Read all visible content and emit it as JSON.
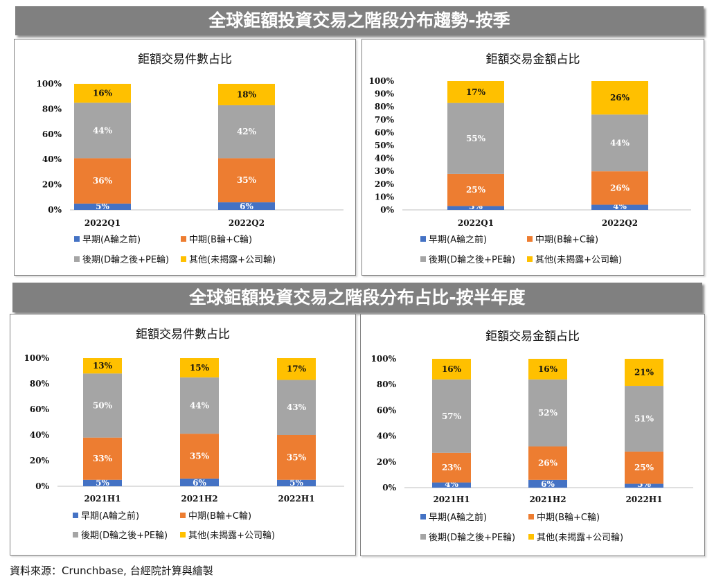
{
  "banners": {
    "quarterly": "全球鉅額投資交易之階段分布趨勢-按季",
    "half_year": "全球鉅額投資交易之階段分布占比-按半年度"
  },
  "source": "資料來源：Crunchbase, 台經院計算與繪製",
  "colors": {
    "early": "#4472C4",
    "mid": "#ED7D31",
    "late": "#A5A5A5",
    "other": "#FFC000"
  },
  "legend": [
    "早期(A輪之前)",
    "中期(B輪+C輪)",
    "後期(D輪之後+PE輪)",
    "其他(未揭露+公司輪)"
  ],
  "chart_data": [
    {
      "type": "bar",
      "stacked": true,
      "title": "鉅額交易件數占比",
      "categories": [
        "2022Q1",
        "2022Q2"
      ],
      "ylim": [
        0,
        100
      ],
      "yticks": [
        "0%",
        "20%",
        "40%",
        "60%",
        "80%",
        "100%"
      ],
      "series": [
        {
          "name": "早期(A輪之前)",
          "values": [
            5,
            6
          ]
        },
        {
          "name": "中期(B輪+C輪)",
          "values": [
            36,
            35
          ]
        },
        {
          "name": "後期(D輪之後+PE輪)",
          "values": [
            44,
            42
          ]
        },
        {
          "name": "其他(未揭露+公司輪)",
          "values": [
            16,
            18
          ]
        }
      ],
      "legend_position": "bottom"
    },
    {
      "type": "bar",
      "stacked": true,
      "title": "鉅額交易金額占比",
      "categories": [
        "2022Q1",
        "2022Q2"
      ],
      "ylim": [
        0,
        100
      ],
      "yticks": [
        "0%",
        "10%",
        "20%",
        "30%",
        "40%",
        "50%",
        "60%",
        "70%",
        "80%",
        "90%",
        "100%"
      ],
      "series": [
        {
          "name": "早期(A輪之前)",
          "values": [
            3,
            4
          ]
        },
        {
          "name": "中期(B輪+C輪)",
          "values": [
            25,
            26
          ]
        },
        {
          "name": "後期(D輪之後+PE輪)",
          "values": [
            55,
            44
          ]
        },
        {
          "name": "其他(未揭露+公司輪)",
          "values": [
            17,
            26
          ]
        }
      ],
      "legend_position": "bottom"
    },
    {
      "type": "bar",
      "stacked": true,
      "title": "鉅額交易件數占比",
      "categories": [
        "2021H1",
        "2021H2",
        "2022H1"
      ],
      "ylim": [
        0,
        100
      ],
      "yticks": [
        "0%",
        "20%",
        "40%",
        "60%",
        "80%",
        "100%"
      ],
      "series": [
        {
          "name": "早期(A輪之前)",
          "values": [
            5,
            6,
            5
          ]
        },
        {
          "name": "中期(B輪+C輪)",
          "values": [
            33,
            35,
            35
          ]
        },
        {
          "name": "後期(D輪之後+PE輪)",
          "values": [
            50,
            44,
            43
          ]
        },
        {
          "name": "其他(未揭露+公司輪)",
          "values": [
            13,
            15,
            17
          ]
        }
      ],
      "legend_position": "bottom"
    },
    {
      "type": "bar",
      "stacked": true,
      "title": "鉅額交易金額占比",
      "categories": [
        "2021H1",
        "2021H2",
        "2022H1"
      ],
      "ylim": [
        0,
        100
      ],
      "yticks": [
        "0%",
        "20%",
        "40%",
        "60%",
        "80%",
        "100%"
      ],
      "series": [
        {
          "name": "早期(A輪之前)",
          "values": [
            4,
            6,
            3
          ]
        },
        {
          "name": "中期(B輪+C輪)",
          "values": [
            23,
            26,
            25
          ]
        },
        {
          "name": "後期(D輪之後+PE輪)",
          "values": [
            57,
            52,
            51
          ]
        },
        {
          "name": "其他(未揭露+公司輪)",
          "values": [
            16,
            16,
            21
          ]
        }
      ],
      "legend_position": "bottom"
    }
  ]
}
